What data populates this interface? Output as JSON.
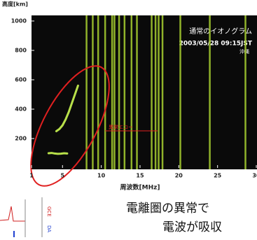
{
  "chart_data": {
    "type": "ionogram",
    "title": "通常のイオノグラム",
    "subtitle": "2003/05/28 09:15JST",
    "station": "沖縄",
    "x_label": "周波数[MHz]",
    "y_label": "高度[km]",
    "annotation": "異常エコー",
    "xlim": [
      1,
      30
    ],
    "xticks": [
      1,
      5,
      10,
      15,
      20,
      25,
      30
    ],
    "ylim": [
      0,
      1000
    ],
    "yticks": [
      200,
      400,
      600,
      800,
      1000
    ],
    "echo_color": "#b8e04a",
    "band_color": "#a8d030",
    "annotation_color": "#e02020",
    "bands": [
      8.1,
      8.9,
      9.6,
      10.5,
      11.4,
      11.7,
      12.3,
      13.0,
      13.9,
      14.6,
      16.5,
      17.0,
      17.4,
      17.9,
      20.2,
      24.0,
      28.6
    ],
    "series": [
      {
        "x": [
          3.2,
          3.6,
          4.0,
          4.4,
          4.8,
          5.2,
          5.6
        ],
        "values": [
          100,
          102,
          98,
          96,
          97,
          100,
          98
        ]
      },
      {
        "x": [
          4.2,
          4.6,
          5.0,
          5.4,
          5.8,
          6.2,
          6.6,
          7.0
        ],
        "values": [
          250,
          265,
          290,
          330,
          380,
          440,
          500,
          560
        ]
      }
    ]
  },
  "caption": [
    "電離圏の異常で",
    "電波が吸収"
  ]
}
